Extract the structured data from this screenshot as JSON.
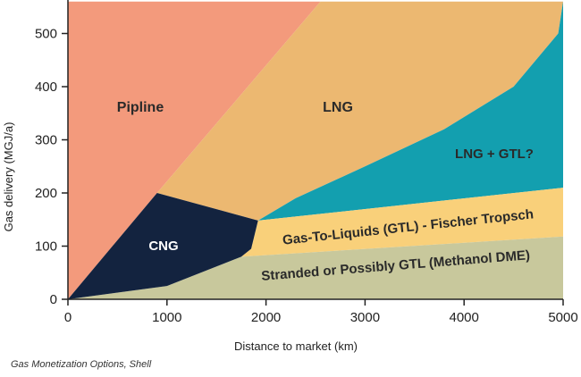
{
  "chart_data": {
    "type": "area",
    "title": "",
    "xlabel": "Distance to market (km)",
    "ylabel": "Gas delivery (MGJ/a)",
    "xlim": [
      0,
      5000
    ],
    "ylim": [
      0,
      560
    ],
    "x_ticks": [
      "0",
      "1000",
      "2000",
      "3000",
      "4000",
      "5000"
    ],
    "y_ticks": [
      "0",
      "100",
      "200",
      "300",
      "400",
      "500"
    ],
    "regions": [
      {
        "name": "Pipline",
        "color": "#f39a7c",
        "boundary": [
          [
            0,
            0
          ],
          [
            0,
            560
          ],
          [
            2550,
            560
          ],
          [
            900,
            200
          ],
          [
            0,
            0
          ]
        ]
      },
      {
        "name": "LNG",
        "color": "#ecb871",
        "boundary": [
          [
            2550,
            560
          ],
          [
            5000,
            560
          ],
          [
            4950,
            500
          ],
          [
            4500,
            400
          ],
          [
            3800,
            320
          ],
          [
            3000,
            250
          ],
          [
            2300,
            190
          ],
          [
            1920,
            148
          ],
          [
            900,
            200
          ]
        ]
      },
      {
        "name": "LNG + GTL?",
        "color": "#139faf",
        "boundary": [
          [
            5000,
            560
          ],
          [
            5000,
            210
          ],
          [
            1920,
            148
          ],
          [
            2300,
            190
          ],
          [
            3000,
            250
          ],
          [
            3800,
            320
          ],
          [
            4500,
            400
          ],
          [
            4950,
            500
          ]
        ]
      },
      {
        "name": "Gas-To-Liquids (GTL) - Fischer Tropsch",
        "color": "#f9d07a",
        "boundary": [
          [
            1920,
            148
          ],
          [
            5000,
            210
          ],
          [
            5000,
            118
          ],
          [
            1750,
            80
          ],
          [
            1850,
            95
          ],
          [
            1920,
            148
          ]
        ]
      },
      {
        "name": "Stranded or Possibly GTL (Methanol DME)",
        "color": "#c8c89c",
        "boundary": [
          [
            0,
            0
          ],
          [
            5000,
            0
          ],
          [
            5000,
            118
          ],
          [
            1750,
            80
          ],
          [
            1000,
            25
          ],
          [
            0,
            0
          ]
        ]
      },
      {
        "name": "CNG",
        "color": "#13233f",
        "boundary": [
          [
            0,
            0
          ],
          [
            900,
            200
          ],
          [
            1920,
            148
          ],
          [
            1850,
            95
          ],
          [
            1750,
            80
          ],
          [
            1000,
            25
          ],
          [
            0,
            0
          ]
        ]
      }
    ]
  },
  "caption": "Gas Monetization Options, Shell",
  "colors": {
    "pipeline": "#f39a7c",
    "lng": "#ecb871",
    "lng_gtl": "#139faf",
    "gtl": "#f9d07a",
    "stranded": "#c8c89c",
    "cng": "#13233f"
  }
}
